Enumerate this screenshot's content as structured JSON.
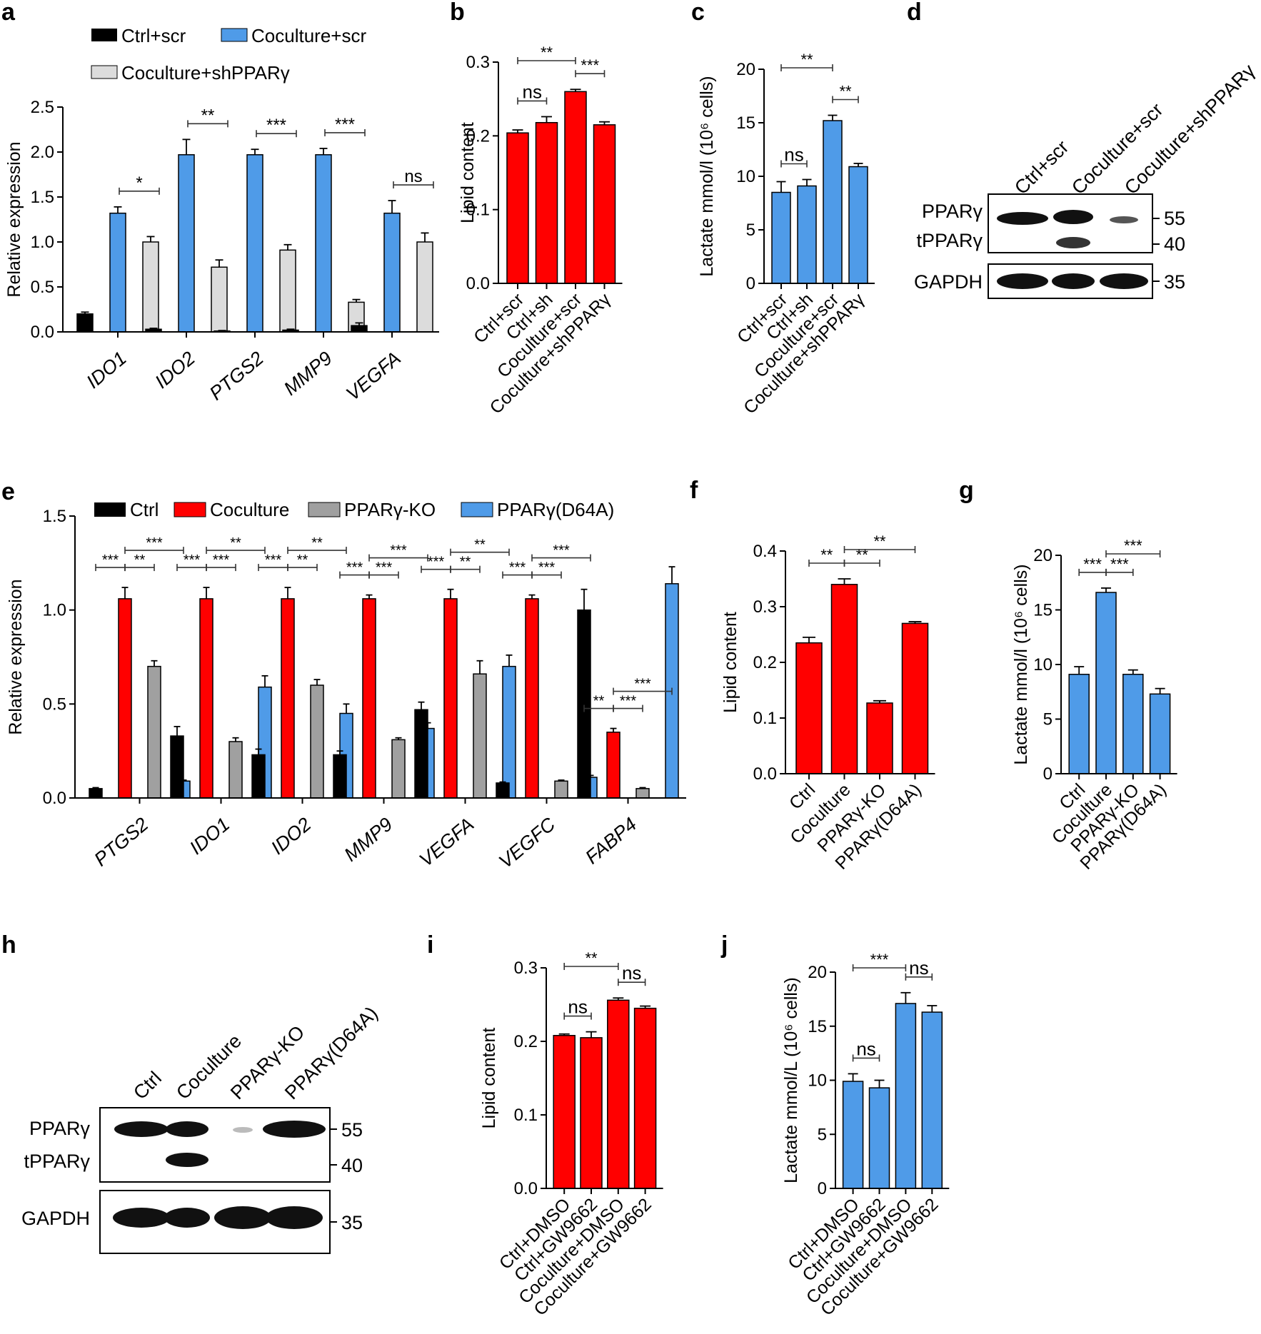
{
  "colors": {
    "black": "#000000",
    "red": "#ff0000",
    "blue": "#4f9be8",
    "gray": "#a0a0a0",
    "lightgray": "#dcdcdc"
  },
  "chart_data": [
    {
      "type": "bar",
      "panel": "a",
      "ylabel": "Relative expression",
      "ylim": [
        0,
        2.5
      ],
      "yticks": [
        "0.0",
        "0.5",
        "1.0",
        "1.5",
        "2.0",
        "2.5"
      ],
      "categories": [
        "IDO1",
        "IDO2",
        "PTGS2",
        "MMP9",
        "VEGFA"
      ],
      "series": [
        {
          "name": "Ctrl+scr",
          "color": "black",
          "values": [
            0.2,
            0.03,
            0.01,
            0.02,
            0.07
          ],
          "errors": [
            0.02,
            0.01,
            0.005,
            0.01,
            0.03
          ]
        },
        {
          "name": "Coculture+scr",
          "color": "blue",
          "values": [
            1.32,
            1.97,
            1.97,
            1.97,
            1.32
          ],
          "errors": [
            0.07,
            0.17,
            0.06,
            0.07,
            0.14
          ]
        },
        {
          "name": "Coculture+shPPARγ",
          "color": "lightgray",
          "values": [
            1.0,
            0.72,
            0.91,
            0.33,
            1.0
          ],
          "errors": [
            0.06,
            0.08,
            0.06,
            0.03,
            0.1
          ]
        }
      ],
      "sig": [
        "*",
        "**",
        "***",
        "***",
        "ns"
      ]
    },
    {
      "type": "bar",
      "panel": "b",
      "ylabel": "Lipid content",
      "ylim": [
        0,
        0.3
      ],
      "yticks": [
        "0.0",
        "0.1",
        "0.2",
        "0.3"
      ],
      "categories": [
        "Ctrl+scr",
        "Ctrl+sh",
        "Coculture+scr",
        "Coculture+shPPARγ"
      ],
      "color": "red",
      "values": [
        0.204,
        0.218,
        0.26,
        0.215
      ],
      "errors": [
        0.004,
        0.008,
        0.003,
        0.004
      ],
      "sig": [
        {
          "a": 0,
          "b": 2,
          "label": "**"
        },
        {
          "a": 0,
          "b": 1,
          "label": "ns"
        },
        {
          "a": 2,
          "b": 3,
          "label": "***"
        }
      ]
    },
    {
      "type": "bar",
      "panel": "c",
      "ylabel": "Lactate mmol/l (10⁶ cells)",
      "ylim": [
        0,
        20
      ],
      "yticks": [
        "0",
        "5",
        "10",
        "15",
        "20"
      ],
      "categories": [
        "Ctrl+scr",
        "Ctrl+sh",
        "Coculture+scr",
        "Coculture+shPPARγ"
      ],
      "color": "blue",
      "values": [
        8.5,
        9.1,
        15.2,
        10.9
      ],
      "errors": [
        1.0,
        0.6,
        0.5,
        0.3
      ],
      "sig": [
        {
          "a": 0,
          "b": 2,
          "label": "**"
        },
        {
          "a": 0,
          "b": 1,
          "label": "ns"
        },
        {
          "a": 2,
          "b": 3,
          "label": "**"
        }
      ]
    },
    {
      "type": "bar",
      "panel": "e",
      "ylabel": "Relative expression",
      "ylim": [
        0,
        1.5
      ],
      "yticks": [
        "0.0",
        "0.5",
        "1.0",
        "1.5"
      ],
      "categories": [
        "PTGS2",
        "IDO1",
        "IDO2",
        "MMP9",
        "VEGFA",
        "VEGFC",
        "FABP4"
      ],
      "series": [
        {
          "name": "Ctrl",
          "color": "black",
          "values": [
            0.05,
            0.33,
            0.23,
            0.23,
            0.47,
            0.08,
            1.0
          ],
          "errors": [
            0.005,
            0.05,
            0.03,
            0.02,
            0.04,
            0.005,
            0.11
          ]
        },
        {
          "name": "Coculture",
          "color": "red",
          "values": [
            1.06,
            1.06,
            1.06,
            1.06,
            1.06,
            1.06,
            0.35
          ],
          "errors": [
            0.06,
            0.06,
            0.06,
            0.02,
            0.05,
            0.02,
            0.02
          ]
        },
        {
          "name": "PPARγ-KO",
          "color": "gray",
          "values": [
            0.7,
            0.3,
            0.6,
            0.31,
            0.66,
            0.09,
            0.05
          ],
          "errors": [
            0.03,
            0.02,
            0.03,
            0.01,
            0.07,
            0.005,
            0.005
          ]
        },
        {
          "name": "PPARγ(D64A)",
          "color": "blue",
          "values": [
            0.09,
            0.59,
            0.45,
            0.37,
            0.7,
            0.11,
            1.14
          ],
          "errors": [
            0.005,
            0.06,
            0.05,
            0.03,
            0.06,
            0.01,
            0.09
          ]
        }
      ],
      "sig_low": [
        [
          "***",
          "**"
        ],
        [
          "***",
          "***"
        ],
        [
          "***",
          "**"
        ],
        [
          "***",
          "***"
        ],
        [
          "***",
          "**"
        ],
        [
          "***",
          "***"
        ],
        [
          "**",
          "***"
        ]
      ],
      "sig_high": [
        "***",
        "**",
        "**",
        "***",
        "**",
        "***",
        "***"
      ]
    },
    {
      "type": "bar",
      "panel": "f",
      "ylabel": "Lipid content",
      "ylim": [
        0,
        0.4
      ],
      "yticks": [
        "0.0",
        "0.1",
        "0.2",
        "0.3",
        "0.4"
      ],
      "categories": [
        "Ctrl",
        "Coculture",
        "PPARγ-KO",
        "PPARγ(D64A)"
      ],
      "color": "red",
      "values": [
        0.235,
        0.34,
        0.127,
        0.27
      ],
      "errors": [
        0.01,
        0.01,
        0.004,
        0.003
      ],
      "sig": [
        {
          "a": 1,
          "b": 3,
          "label": "**"
        },
        {
          "a": 0,
          "b": 1,
          "label": "**"
        },
        {
          "a": 1,
          "b": 2,
          "label": "**"
        }
      ]
    },
    {
      "type": "bar",
      "panel": "g",
      "ylabel": "Lactate mmol/l (10⁶ cells)",
      "ylim": [
        0,
        20
      ],
      "yticks": [
        "0",
        "5",
        "10",
        "15",
        "20"
      ],
      "categories": [
        "Ctrl",
        "Coculture",
        "PPARγ-KO",
        "PPARγ(D64A)"
      ],
      "color": "blue",
      "values": [
        9.1,
        16.6,
        9.1,
        7.3
      ],
      "errors": [
        0.7,
        0.4,
        0.4,
        0.5
      ],
      "sig": [
        {
          "a": 1,
          "b": 3,
          "label": "***"
        },
        {
          "a": 0,
          "b": 1,
          "label": "***"
        },
        {
          "a": 1,
          "b": 2,
          "label": "***"
        }
      ]
    },
    {
      "type": "bar",
      "panel": "i",
      "ylabel": "Lipid content",
      "ylim": [
        0,
        0.3
      ],
      "yticks": [
        "0.0",
        "0.1",
        "0.2",
        "0.3"
      ],
      "categories": [
        "Ctrl+DMSO",
        "Ctrl+GW9662",
        "Coculture+DMSO",
        "Coculture+GW9662"
      ],
      "color": "red",
      "values": [
        0.208,
        0.205,
        0.256,
        0.245
      ],
      "errors": [
        0.002,
        0.008,
        0.003,
        0.003
      ],
      "sig": [
        {
          "a": 0,
          "b": 2,
          "label": "**"
        },
        {
          "a": 0,
          "b": 1,
          "label": "ns"
        },
        {
          "a": 2,
          "b": 3,
          "label": "ns"
        }
      ]
    },
    {
      "type": "bar",
      "panel": "j",
      "ylabel": "Lactate mmol/L (10⁶ cells)",
      "ylim": [
        0,
        20
      ],
      "yticks": [
        "0",
        "5",
        "10",
        "15",
        "20"
      ],
      "categories": [
        "Ctrl+DMSO",
        "Ctrl+GW9662",
        "Coculture+DMSO",
        "Coculture+GW9662"
      ],
      "color": "blue",
      "values": [
        9.9,
        9.3,
        17.1,
        16.3
      ],
      "errors": [
        0.7,
        0.7,
        1.0,
        0.6
      ],
      "sig": [
        {
          "a": 0,
          "b": 2,
          "label": "***"
        },
        {
          "a": 0,
          "b": 1,
          "label": "ns"
        },
        {
          "a": 2,
          "b": 3,
          "label": "ns"
        }
      ]
    }
  ],
  "blots": [
    {
      "panel": "d",
      "lanes": [
        "Ctrl+scr",
        "Coculture+scr",
        "Coculture+shPPARγ"
      ],
      "rows": [
        "PPARγ",
        "tPPARγ",
        "GAPDH"
      ],
      "markers": [
        "55",
        "40",
        "35"
      ]
    },
    {
      "panel": "h",
      "lanes": [
        "Ctrl",
        "Coculture",
        "PPARγ-KO",
        "PPARγ(D64A)"
      ],
      "rows": [
        "PPARγ",
        "tPPARγ",
        "GAPDH"
      ],
      "markers": [
        "55",
        "40",
        "35"
      ]
    }
  ]
}
